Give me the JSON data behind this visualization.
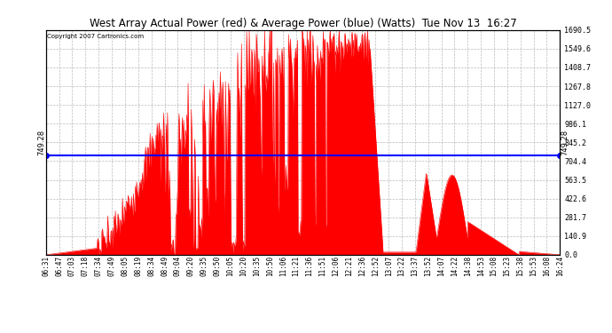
{
  "title": "West Array Actual Power (red) & Average Power (blue) (Watts)  Tue Nov 13  16:27",
  "copyright": "Copyright 2007 Cartronics.com",
  "avg_power": 749.28,
  "y_max": 1690.5,
  "y_min": 0.0,
  "y_ticks": [
    0.0,
    140.9,
    281.7,
    422.6,
    563.5,
    704.4,
    845.2,
    986.1,
    1127.0,
    1267.8,
    1408.7,
    1549.6,
    1690.5
  ],
  "y_tick_labels": [
    "0.0",
    "140.9",
    "281.7",
    "422.6",
    "563.5",
    "704.4",
    "845.2",
    "986.1",
    "1127.0",
    "1267.8",
    "1408.7",
    "1549.6",
    "1690.5"
  ],
  "background_color": "#ffffff",
  "fill_color": "#ff0000",
  "avg_line_color": "#0000ff",
  "grid_color": "#aaaaaa",
  "title_color": "#000000",
  "x_tick_labels": [
    "06:31",
    "06:47",
    "07:03",
    "07:18",
    "07:34",
    "07:49",
    "08:05",
    "08:19",
    "08:34",
    "08:49",
    "09:04",
    "09:20",
    "09:35",
    "09:50",
    "10:05",
    "10:20",
    "10:35",
    "10:50",
    "11:06",
    "11:21",
    "11:36",
    "11:51",
    "12:06",
    "12:21",
    "12:36",
    "12:52",
    "13:07",
    "13:22",
    "13:37",
    "13:52",
    "14:07",
    "14:22",
    "14:38",
    "14:53",
    "15:08",
    "15:23",
    "15:38",
    "15:53",
    "16:08",
    "16:24"
  ]
}
